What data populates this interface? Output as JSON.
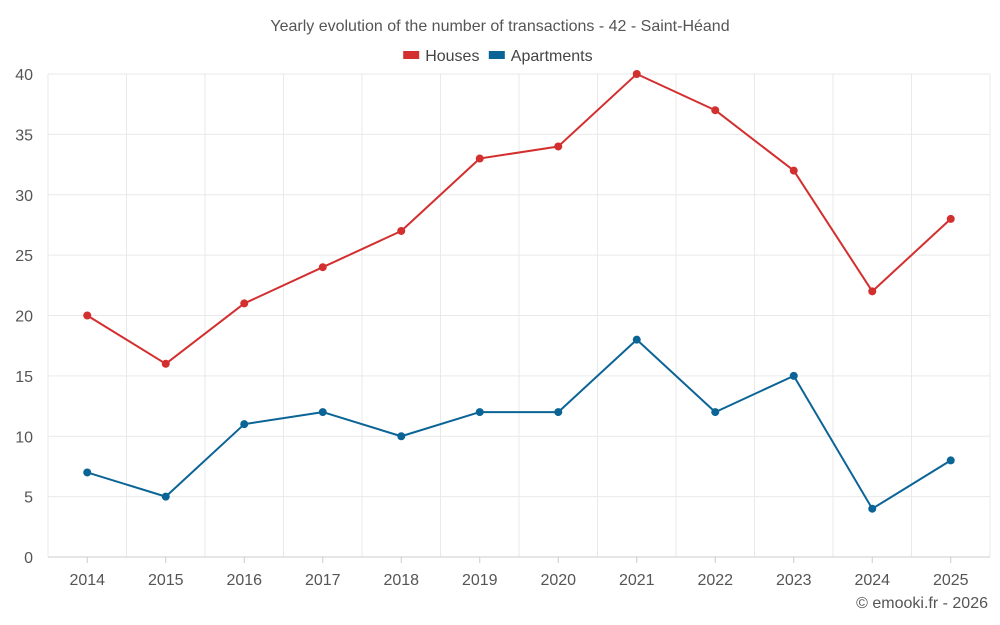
{
  "chart_data": {
    "type": "line",
    "title": "Yearly evolution of the number of transactions - 42 - Saint-Héand",
    "categories": [
      "2014",
      "2015",
      "2016",
      "2017",
      "2018",
      "2019",
      "2020",
      "2021",
      "2022",
      "2023",
      "2024",
      "2025"
    ],
    "series": [
      {
        "name": "Houses",
        "color": "#d32f2f",
        "values": [
          20,
          16,
          21,
          24,
          27,
          33,
          34,
          40,
          37,
          32,
          22,
          28
        ]
      },
      {
        "name": "Apartments",
        "color": "#0b6496",
        "values": [
          7,
          5,
          11,
          12,
          10,
          12,
          12,
          18,
          12,
          15,
          4,
          8
        ]
      }
    ],
    "ylim": [
      0,
      40
    ],
    "yticks": [
      0,
      5,
      10,
      15,
      20,
      25,
      30,
      35,
      40
    ],
    "xlabel": "",
    "ylabel": "",
    "legend_position": "top-center",
    "grid": true
  },
  "credit": "© emooki.fr - 2026"
}
